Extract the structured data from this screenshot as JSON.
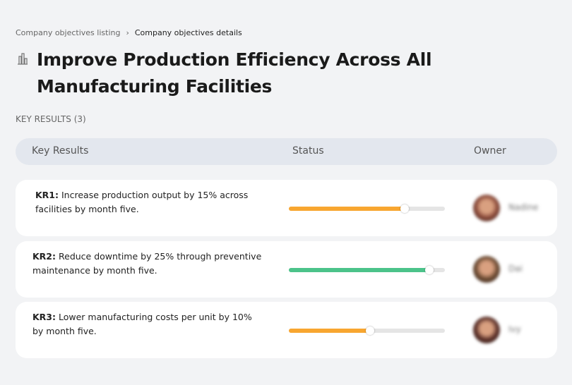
{
  "breadcrumb": {
    "parent": "Company objectives listing",
    "separator": "›",
    "current": "Company objectives details"
  },
  "title": "Improve Production Efficiency Across All Manufacturing Facilities",
  "title_icon": "building-icon",
  "section_label": "KEY RESULTS (3)",
  "columns": [
    "Key Results",
    "Status",
    "Owner"
  ],
  "rows": [
    {
      "id": "KR1:",
      "text": "Increase production output by 15% across facilities by month five.",
      "progress": 0.74,
      "color": "#f8a630",
      "owner": "Nadine",
      "avatar": "#8a4a3a"
    },
    {
      "id": "KR2:",
      "text": "Reduce downtime by 25% through preventive maintenance by month five.",
      "progress": 0.9,
      "color": "#4cc38a",
      "owner": "Dai",
      "avatar": "#6b4a32"
    },
    {
      "id": "KR3:",
      "text": "Lower manufacturing costs per unit by 10% by month five.",
      "progress": 0.52,
      "color": "#f8a630",
      "owner": "Ivy",
      "avatar": "#5a2f28"
    }
  ]
}
